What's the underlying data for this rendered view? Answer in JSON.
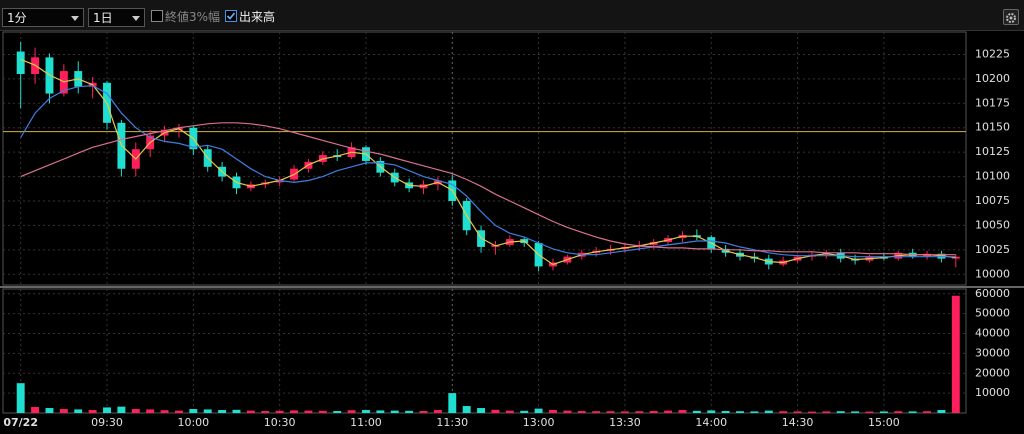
{
  "toolbar": {
    "interval": "1分",
    "range": "1日",
    "options": [
      {
        "label": "終値3%幅",
        "checked": false
      },
      {
        "label": "出来高",
        "checked": true
      }
    ]
  },
  "chart_data": [
    {
      "type": "candlestick",
      "categories": [
        "07/22",
        null,
        null,
        null,
        null,
        null,
        "09:30",
        null,
        null,
        null,
        null,
        null,
        "10:00",
        null,
        null,
        null,
        null,
        null,
        "10:30",
        null,
        null,
        null,
        null,
        null,
        "11:00",
        null,
        null,
        null,
        null,
        null,
        "11:30",
        null,
        null,
        null,
        null,
        null,
        "13:00",
        null,
        null,
        null,
        null,
        null,
        "13:30",
        null,
        null,
        null,
        null,
        null,
        "14:00",
        null,
        null,
        null,
        null,
        null,
        "14:30",
        null,
        null,
        null,
        null,
        null,
        "15:00",
        null,
        null,
        null,
        null,
        null
      ],
      "open": [
        10228,
        10205,
        10222,
        10185,
        10208,
        10192,
        10196,
        10155,
        10108,
        10128,
        10142,
        10148,
        10150,
        10128,
        10110,
        10100,
        10088,
        10092,
        10094,
        10097,
        10108,
        10115,
        10122,
        10120,
        10130,
        10116,
        10104,
        10094,
        10088,
        10092,
        10096,
        10075,
        10045,
        10028,
        10030,
        10036,
        10032,
        10008,
        10012,
        10018,
        10022,
        10024,
        10026,
        10028,
        10030,
        10033,
        10037,
        10040,
        10038,
        10026,
        10022,
        10018,
        10016,
        10010,
        10014,
        10018,
        10020,
        10022,
        10016,
        10014,
        10018,
        10016,
        10022,
        10018,
        10021,
        10016
      ],
      "high": [
        10238,
        10232,
        10226,
        10215,
        10218,
        10202,
        10198,
        10158,
        10135,
        10148,
        10152,
        10154,
        10152,
        10132,
        10115,
        10104,
        10095,
        10097,
        10100,
        10112,
        10118,
        10126,
        10128,
        10135,
        10132,
        10120,
        10108,
        10098,
        10096,
        10100,
        10102,
        10078,
        10050,
        10034,
        10040,
        10038,
        10034,
        10016,
        10020,
        10025,
        10028,
        10030,
        10032,
        10034,
        10036,
        10040,
        10044,
        10046,
        10040,
        10030,
        10026,
        10022,
        10020,
        10018,
        10020,
        10024,
        10025,
        10026,
        10020,
        10020,
        10022,
        10024,
        10026,
        10024,
        10024,
        10020
      ],
      "low": [
        10170,
        10195,
        10175,
        10182,
        10185,
        10180,
        10148,
        10100,
        10100,
        10120,
        10135,
        10140,
        10122,
        10105,
        10095,
        10082,
        10085,
        10088,
        10090,
        10095,
        10104,
        10112,
        10116,
        10118,
        10112,
        10100,
        10090,
        10084,
        10082,
        10086,
        10070,
        10040,
        10022,
        10020,
        10028,
        10028,
        10003,
        10004,
        10010,
        10015,
        10018,
        10020,
        10022,
        10024,
        10026,
        10030,
        10033,
        10035,
        10022,
        10018,
        10014,
        10012,
        10005,
        10008,
        10012,
        10014,
        10016,
        10012,
        10010,
        10012,
        10014,
        10014,
        10016,
        10015,
        10012,
        10007
      ],
      "close": [
        10205,
        10222,
        10185,
        10208,
        10192,
        10196,
        10155,
        10108,
        10128,
        10142,
        10148,
        10150,
        10128,
        10110,
        10100,
        10088,
        10092,
        10094,
        10097,
        10108,
        10115,
        10122,
        10120,
        10130,
        10116,
        10104,
        10094,
        10088,
        10092,
        10096,
        10075,
        10045,
        10028,
        10030,
        10036,
        10032,
        10008,
        10012,
        10018,
        10022,
        10024,
        10026,
        10028,
        10030,
        10033,
        10037,
        10040,
        10038,
        10026,
        10022,
        10018,
        10016,
        10010,
        10014,
        10018,
        10020,
        10022,
        10016,
        10014,
        10018,
        10016,
        10022,
        10018,
        10021,
        10016,
        10018
      ],
      "up_color": "#ff1f5c",
      "down_color": "#1fe0d0",
      "series": [
        {
          "color": "#e6c84a",
          "values": [
            10220,
            10214,
            10204,
            10197,
            10200,
            10194,
            10175,
            10132,
            10118,
            10135,
            10145,
            10149,
            10139,
            10119,
            10105,
            10094,
            10090,
            10093,
            10096,
            10102,
            10112,
            10118,
            10121,
            10125,
            10123,
            10110,
            10099,
            10091,
            10090,
            10094,
            10086,
            10060,
            10037,
            10029,
            10033,
            10034,
            10020,
            10010,
            10015,
            10020,
            10023,
            10025,
            10027,
            10029,
            10032,
            10035,
            10039,
            10039,
            10032,
            10024,
            10020,
            10017,
            10013,
            10012,
            10016,
            10019,
            10021,
            10019,
            10015,
            10016,
            10017,
            10019,
            10020,
            10020,
            10019,
            10017
          ]
        },
        {
          "color": "#3d7fe0",
          "values": [
            10140,
            10165,
            10180,
            10188,
            10192,
            10193,
            10185,
            10165,
            10150,
            10140,
            10136,
            10134,
            10130,
            10132,
            10128,
            10118,
            10108,
            10100,
            10096,
            10094,
            10096,
            10100,
            10106,
            10110,
            10114,
            10114,
            10112,
            10106,
            10100,
            10096,
            10092,
            10080,
            10064,
            10050,
            10042,
            10038,
            10032,
            10026,
            10022,
            10020,
            10020,
            10022,
            10024,
            10026,
            10028,
            10030,
            10032,
            10034,
            10034,
            10032,
            10028,
            10025,
            10022,
            10020,
            10019,
            10019,
            10019,
            10019,
            10018,
            10018,
            10018,
            10018,
            10018,
            10018,
            10018,
            10018
          ]
        },
        {
          "color": "#d9708f",
          "values": [
            10100,
            10106,
            10112,
            10118,
            10124,
            10130,
            10134,
            10138,
            10141,
            10144,
            10147,
            10150,
            10152,
            10154,
            10155,
            10155,
            10154,
            10152,
            10149,
            10145,
            10141,
            10137,
            10133,
            10129,
            10126,
            10123,
            10119,
            10115,
            10111,
            10107,
            10103,
            10097,
            10090,
            10082,
            10075,
            10068,
            10061,
            10054,
            10048,
            10043,
            10038,
            10034,
            10031,
            10029,
            10028,
            10027,
            10027,
            10026,
            10026,
            10025,
            10025,
            10024,
            10024,
            10023,
            10023,
            10023,
            10022,
            10022,
            10022,
            10021,
            10021,
            10021,
            10020,
            10020,
            10020,
            10020
          ]
        }
      ],
      "ref_line": {
        "value": 10146,
        "color": "#d9b23a"
      },
      "ylim": [
        9989,
        10248
      ],
      "yticks": [
        10000,
        10025,
        10050,
        10075,
        10100,
        10125,
        10150,
        10175,
        10200,
        10225
      ],
      "grid": true
    },
    {
      "type": "bar",
      "values": [
        15000,
        3000,
        2500,
        2000,
        1800,
        1500,
        2800,
        3200,
        2000,
        1800,
        1400,
        1200,
        2000,
        1800,
        1500,
        1600,
        1200,
        1000,
        1100,
        1300,
        1200,
        1100,
        1000,
        1400,
        1500,
        1300,
        1200,
        1100,
        1000,
        1500,
        10000,
        3500,
        2500,
        1600,
        1200,
        1100,
        2200,
        1500,
        1200,
        1000,
        900,
        900,
        800,
        900,
        1000,
        1200,
        1500,
        1100,
        1300,
        1000,
        900,
        800,
        1200,
        900,
        800,
        700,
        800,
        900,
        800,
        700,
        800,
        900,
        800,
        900,
        1500,
        59000
      ],
      "ylim": [
        0,
        62400
      ],
      "yticks": [
        10000,
        20000,
        30000,
        40000,
        50000,
        60000
      ],
      "grid": true
    }
  ]
}
